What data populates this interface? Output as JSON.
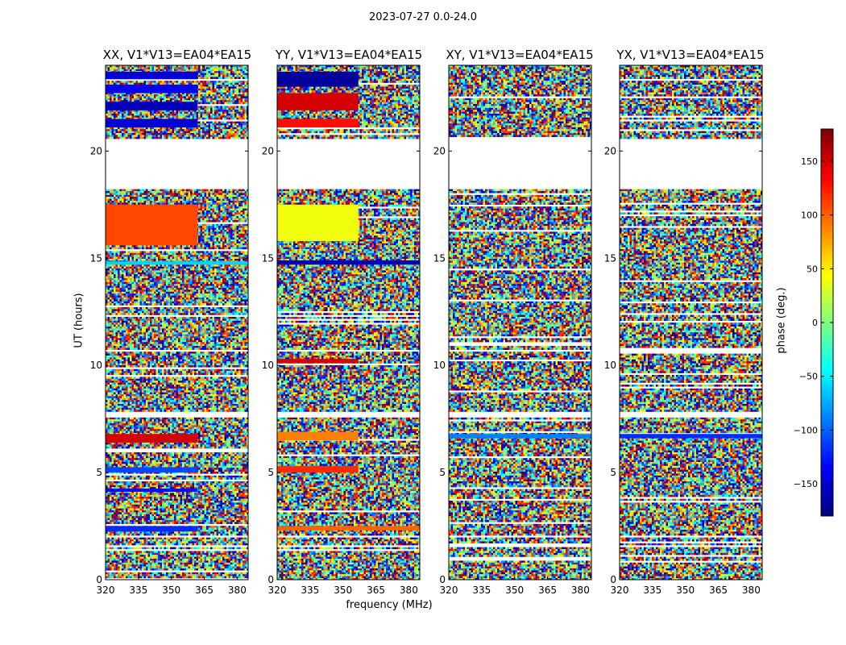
{
  "suptitle": "2023-07-27 0.0-24.0",
  "colors": {
    "background": "#ffffff",
    "frame": "#000000",
    "colormap": "jet"
  },
  "chart_data": {
    "type": "heatmap",
    "x_min": 320,
    "x_max": 385,
    "y_min": 0,
    "y_max": 24,
    "xticks": [
      320,
      335,
      350,
      365,
      380
    ],
    "yticks": [
      0,
      5,
      10,
      15,
      20
    ],
    "xlabel": "frequency (MHz)",
    "ylabel": "UT (hours)",
    "colorbar": {
      "label": "phase (deg.)",
      "vmin": -180,
      "vmax": 180,
      "ticks": [
        -150,
        -100,
        -50,
        0,
        50,
        100,
        150
      ]
    },
    "blank_ut_ranges": [
      [
        18.3,
        20.6
      ],
      [
        7.6,
        7.9
      ],
      [
        1.55,
        1.7
      ],
      [
        2.0,
        2.1
      ],
      [
        20.0,
        20.2
      ]
    ],
    "panels": [
      {
        "title": "XX, V1*V13=EA04*EA15",
        "coherent_bands": [
          {
            "ut": [
              23.35,
              23.7
            ],
            "f": [
              320,
              362
            ],
            "phase": -150
          },
          {
            "ut": [
              22.7,
              23.1
            ],
            "f": [
              320,
              362
            ],
            "phase": -140
          },
          {
            "ut": [
              21.9,
              22.3
            ],
            "f": [
              320,
              362
            ],
            "phase": -160
          },
          {
            "ut": [
              21.1,
              21.5
            ],
            "f": [
              320,
              362
            ],
            "phase": -150
          },
          {
            "ut": [
              15.6,
              17.5
            ],
            "f": [
              320,
              362
            ],
            "phase": 110
          },
          {
            "ut": [
              14.7,
              14.85
            ],
            "f": [
              320,
              385
            ],
            "phase": -60
          },
          {
            "ut": [
              6.4,
              6.8
            ],
            "f": [
              320,
              362
            ],
            "phase": 150
          },
          {
            "ut": [
              5.0,
              5.25
            ],
            "f": [
              320,
              362
            ],
            "phase": -110
          },
          {
            "ut": [
              4.1,
              4.25
            ],
            "f": [
              320,
              362
            ],
            "phase": -130
          },
          {
            "ut": [
              2.25,
              2.5
            ],
            "f": [
              320,
              362
            ],
            "phase": -120
          }
        ]
      },
      {
        "title": "YY, V1*V13=EA04*EA15",
        "coherent_bands": [
          {
            "ut": [
              23.0,
              23.7
            ],
            "f": [
              320,
              357
            ],
            "phase": -170
          },
          {
            "ut": [
              21.9,
              22.7
            ],
            "f": [
              320,
              357
            ],
            "phase": 150
          },
          {
            "ut": [
              21.1,
              21.5
            ],
            "f": [
              320,
              357
            ],
            "phase": 130
          },
          {
            "ut": [
              15.8,
              17.5
            ],
            "f": [
              320,
              357
            ],
            "phase": 40
          },
          {
            "ut": [
              14.7,
              14.9
            ],
            "f": [
              320,
              385
            ],
            "phase": -160
          },
          {
            "ut": [
              10.1,
              10.3
            ],
            "f": [
              320,
              357
            ],
            "phase": 150
          },
          {
            "ut": [
              6.5,
              6.9
            ],
            "f": [
              320,
              357
            ],
            "phase": 90
          },
          {
            "ut": [
              5.0,
              5.3
            ],
            "f": [
              320,
              357
            ],
            "phase": 120
          },
          {
            "ut": [
              2.3,
              2.5
            ],
            "f": [
              320,
              385
            ],
            "phase": 100
          }
        ]
      },
      {
        "title": "XY, V1*V13=EA04*EA15",
        "coherent_bands": [
          {
            "ut": [
              6.6,
              6.8
            ],
            "f": [
              320,
              385
            ],
            "phase": -90
          }
        ]
      },
      {
        "title": "YX, V1*V13=EA04*EA15",
        "coherent_bands": [
          {
            "ut": [
              6.6,
              6.8
            ],
            "f": [
              320,
              385
            ],
            "phase": -120
          }
        ]
      }
    ]
  }
}
